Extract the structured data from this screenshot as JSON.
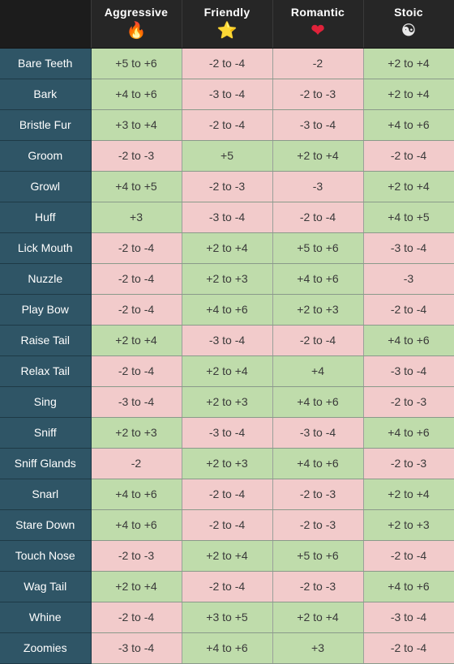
{
  "headers": [
    {
      "label": "Aggressive",
      "icon": "fire-icon",
      "glyph": "🔥"
    },
    {
      "label": "Friendly",
      "icon": "star-icon",
      "glyph": "⭐"
    },
    {
      "label": "Romantic",
      "icon": "heart-icon",
      "glyph": "❤"
    },
    {
      "label": "Stoic",
      "icon": "yin-yang-icon",
      "glyph": "☯"
    }
  ],
  "colors": {
    "positive": "#bfdcab",
    "negative": "#f2cbcb",
    "row_label_bg": "#2f5566"
  },
  "rows": [
    {
      "name": "Bare Teeth",
      "cells": [
        {
          "v": "+5 to +6",
          "pos": true
        },
        {
          "v": "-2 to -4",
          "pos": false
        },
        {
          "v": "-2",
          "pos": false
        },
        {
          "v": "+2 to +4",
          "pos": true
        }
      ]
    },
    {
      "name": "Bark",
      "cells": [
        {
          "v": "+4 to +6",
          "pos": true
        },
        {
          "v": "-3 to -4",
          "pos": false
        },
        {
          "v": "-2 to -3",
          "pos": false
        },
        {
          "v": "+2 to +4",
          "pos": true
        }
      ]
    },
    {
      "name": "Bristle Fur",
      "cells": [
        {
          "v": "+3 to +4",
          "pos": true
        },
        {
          "v": "-2 to -4",
          "pos": false
        },
        {
          "v": "-3 to -4",
          "pos": false
        },
        {
          "v": "+4 to +6",
          "pos": true
        }
      ]
    },
    {
      "name": "Groom",
      "cells": [
        {
          "v": "-2 to -3",
          "pos": false
        },
        {
          "v": "+5",
          "pos": true
        },
        {
          "v": "+2 to +4",
          "pos": true
        },
        {
          "v": "-2 to -4",
          "pos": false
        }
      ]
    },
    {
      "name": "Growl",
      "cells": [
        {
          "v": "+4 to +5",
          "pos": true
        },
        {
          "v": "-2 to -3",
          "pos": false
        },
        {
          "v": "-3",
          "pos": false
        },
        {
          "v": "+2 to +4",
          "pos": true
        }
      ]
    },
    {
      "name": "Huff",
      "cells": [
        {
          "v": "+3",
          "pos": true
        },
        {
          "v": "-3 to -4",
          "pos": false
        },
        {
          "v": "-2 to -4",
          "pos": false
        },
        {
          "v": "+4 to +5",
          "pos": true
        }
      ]
    },
    {
      "name": "Lick Mouth",
      "cells": [
        {
          "v": "-2 to -4",
          "pos": false
        },
        {
          "v": "+2 to +4",
          "pos": true
        },
        {
          "v": "+5 to +6",
          "pos": true
        },
        {
          "v": "-3 to -4",
          "pos": false
        }
      ]
    },
    {
      "name": "Nuzzle",
      "cells": [
        {
          "v": "-2 to -4",
          "pos": false
        },
        {
          "v": "+2 to +3",
          "pos": true
        },
        {
          "v": "+4 to +6",
          "pos": true
        },
        {
          "v": "-3",
          "pos": false
        }
      ]
    },
    {
      "name": "Play Bow",
      "cells": [
        {
          "v": "-2 to -4",
          "pos": false
        },
        {
          "v": "+4 to +6",
          "pos": true
        },
        {
          "v": "+2 to +3",
          "pos": true
        },
        {
          "v": "-2 to -4",
          "pos": false
        }
      ]
    },
    {
      "name": "Raise Tail",
      "cells": [
        {
          "v": "+2 to +4",
          "pos": true
        },
        {
          "v": "-3 to -4",
          "pos": false
        },
        {
          "v": "-2 to -4",
          "pos": false
        },
        {
          "v": "+4 to +6",
          "pos": true
        }
      ]
    },
    {
      "name": "Relax Tail",
      "cells": [
        {
          "v": "-2 to -4",
          "pos": false
        },
        {
          "v": "+2 to +4",
          "pos": true
        },
        {
          "v": "+4",
          "pos": true
        },
        {
          "v": "-3 to -4",
          "pos": false
        }
      ]
    },
    {
      "name": "Sing",
      "cells": [
        {
          "v": "-3 to -4",
          "pos": false
        },
        {
          "v": "+2 to +3",
          "pos": true
        },
        {
          "v": "+4 to +6",
          "pos": true
        },
        {
          "v": "-2 to -3",
          "pos": false
        }
      ]
    },
    {
      "name": "Sniff",
      "cells": [
        {
          "v": "+2 to +3",
          "pos": true
        },
        {
          "v": "-3 to -4",
          "pos": false
        },
        {
          "v": "-3 to -4",
          "pos": false
        },
        {
          "v": "+4 to +6",
          "pos": true
        }
      ]
    },
    {
      "name": "Sniff Glands",
      "cells": [
        {
          "v": "-2",
          "pos": false
        },
        {
          "v": "+2 to +3",
          "pos": true
        },
        {
          "v": "+4 to +6",
          "pos": true
        },
        {
          "v": "-2 to -3",
          "pos": false
        }
      ]
    },
    {
      "name": "Snarl",
      "cells": [
        {
          "v": "+4 to +6",
          "pos": true
        },
        {
          "v": "-2 to -4",
          "pos": false
        },
        {
          "v": "-2 to -3",
          "pos": false
        },
        {
          "v": "+2 to +4",
          "pos": true
        }
      ]
    },
    {
      "name": "Stare Down",
      "cells": [
        {
          "v": "+4 to +6",
          "pos": true
        },
        {
          "v": "-2 to -4",
          "pos": false
        },
        {
          "v": "-2 to -3",
          "pos": false
        },
        {
          "v": "+2 to +3",
          "pos": true
        }
      ]
    },
    {
      "name": "Touch Nose",
      "cells": [
        {
          "v": "-2 to -3",
          "pos": false
        },
        {
          "v": "+2 to +4",
          "pos": true
        },
        {
          "v": "+5 to +6",
          "pos": true
        },
        {
          "v": "-2 to -4",
          "pos": false
        }
      ]
    },
    {
      "name": "Wag Tail",
      "cells": [
        {
          "v": "+2 to +4",
          "pos": true
        },
        {
          "v": "-2 to -4",
          "pos": false
        },
        {
          "v": "-2 to -3",
          "pos": false
        },
        {
          "v": "+4 to +6",
          "pos": true
        }
      ]
    },
    {
      "name": "Whine",
      "cells": [
        {
          "v": "-2 to -4",
          "pos": false
        },
        {
          "v": "+3 to +5",
          "pos": true
        },
        {
          "v": "+2 to +4",
          "pos": true
        },
        {
          "v": "-3 to -4",
          "pos": false
        }
      ]
    },
    {
      "name": "Zoomies",
      "cells": [
        {
          "v": "-3 to -4",
          "pos": false
        },
        {
          "v": "+4 to +6",
          "pos": true
        },
        {
          "v": "+3",
          "pos": true
        },
        {
          "v": "-2 to -4",
          "pos": false
        }
      ]
    }
  ]
}
